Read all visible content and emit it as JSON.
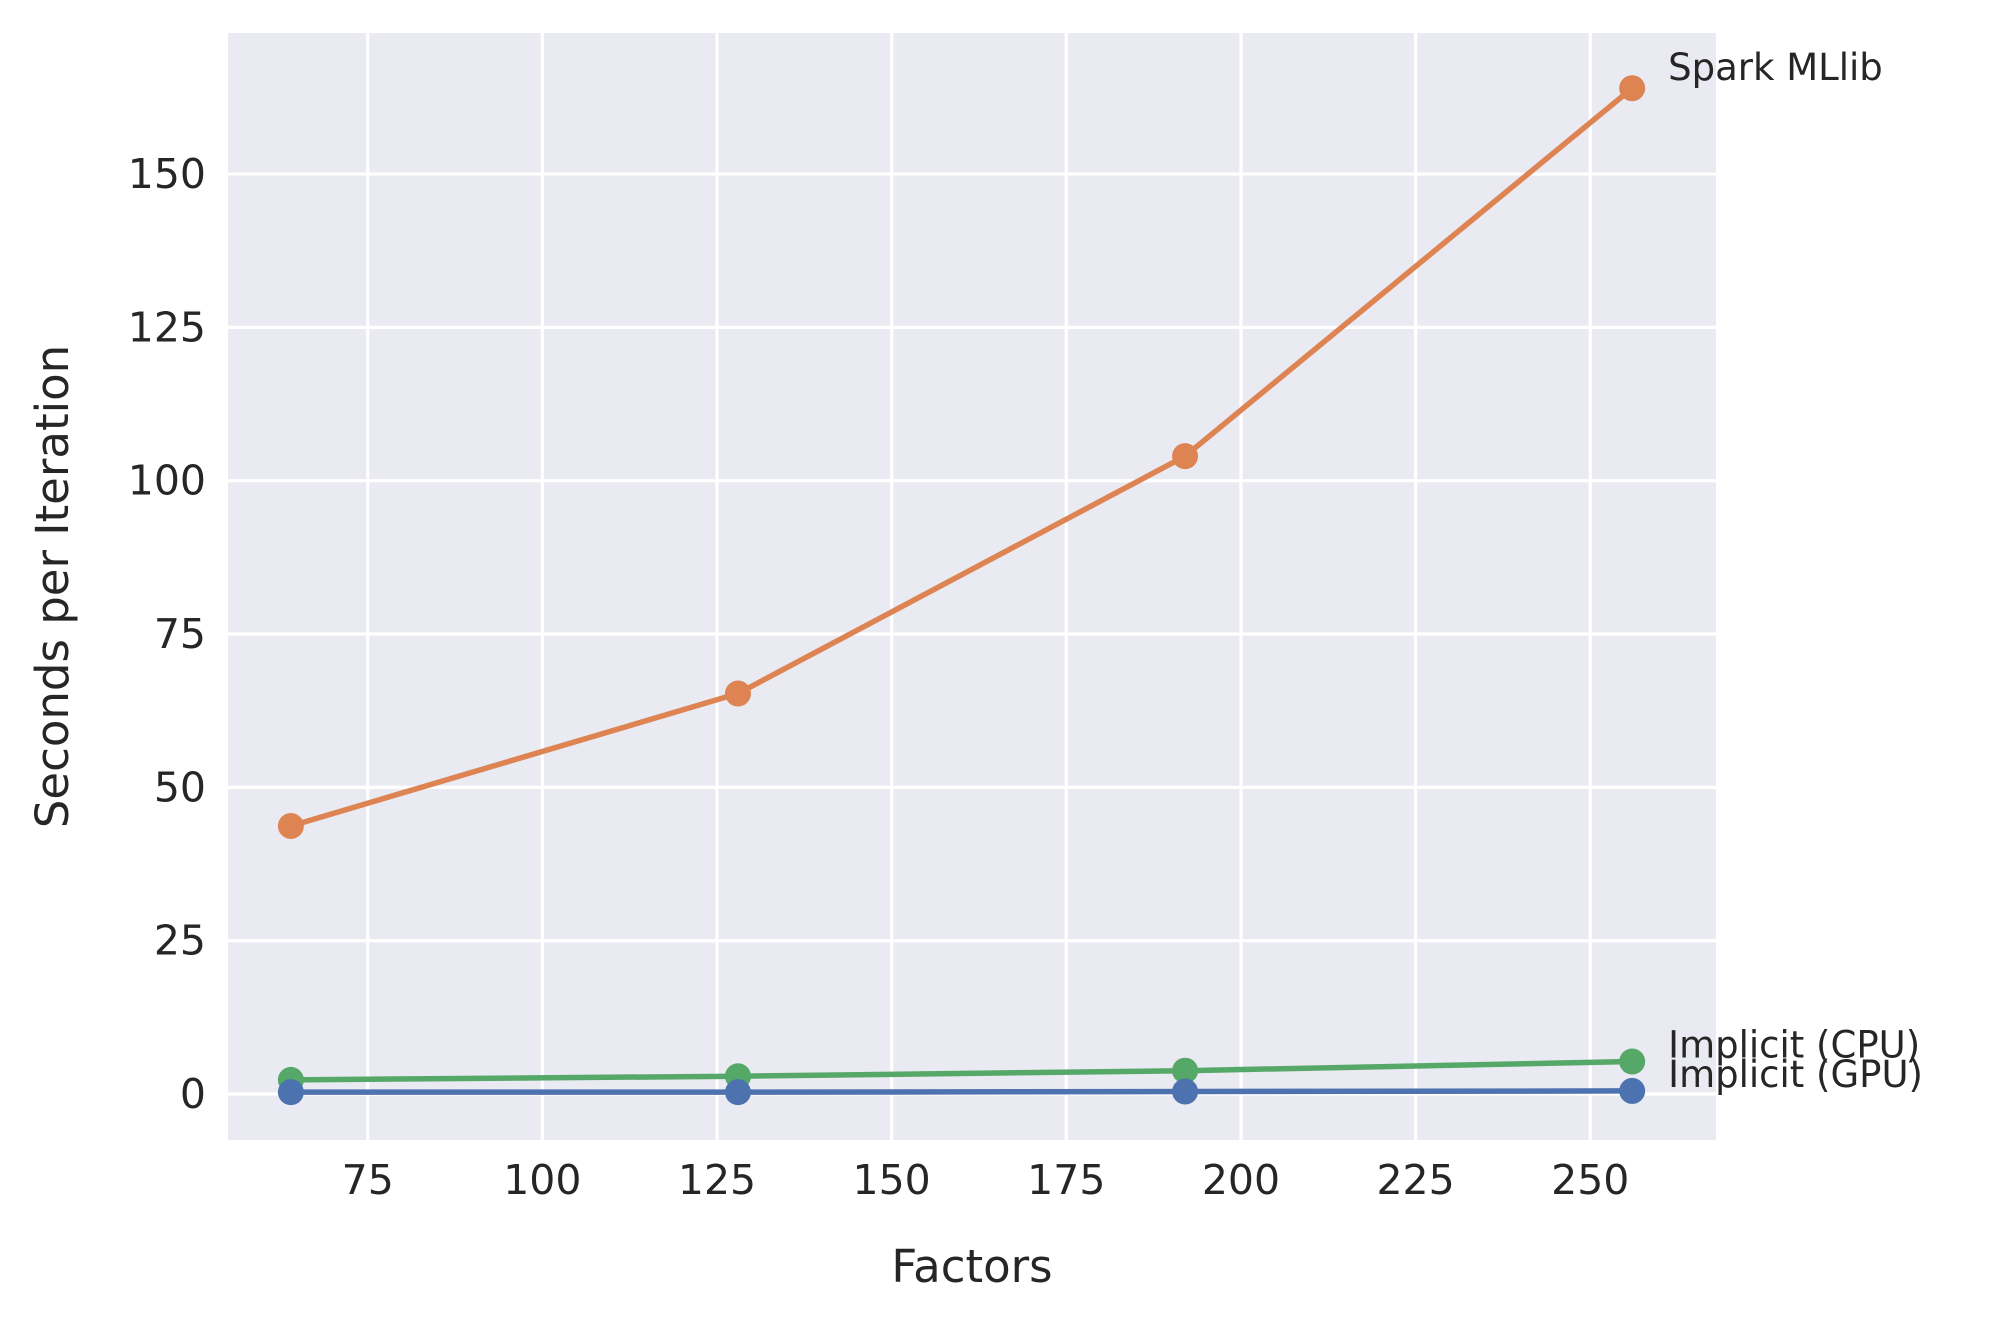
{
  "chart_data": {
    "type": "line",
    "title": "",
    "xlabel": "Factors",
    "ylabel": "Seconds per Iteration",
    "xlim": [
      55,
      268
    ],
    "ylim": [
      -7.5,
      173
    ],
    "xticks": [
      75,
      100,
      125,
      150,
      175,
      200,
      225,
      250
    ],
    "yticks": [
      0,
      25,
      50,
      75,
      100,
      125,
      150
    ],
    "grid": true,
    "legend": "none",
    "x": [
      64,
      128,
      192,
      256
    ],
    "series": [
      {
        "name": "Spark MLlib",
        "color": "#dd8452",
        "values": [
          43.7,
          65.3,
          104.0,
          164.0
        ]
      },
      {
        "name": "Implicit (CPU)",
        "color": "#55a868",
        "values": [
          2.3,
          2.9,
          3.8,
          5.3
        ]
      },
      {
        "name": "Implicit (GPU)",
        "color": "#4c72b0",
        "values": [
          0.3,
          0.3,
          0.4,
          0.5
        ]
      }
    ]
  }
}
